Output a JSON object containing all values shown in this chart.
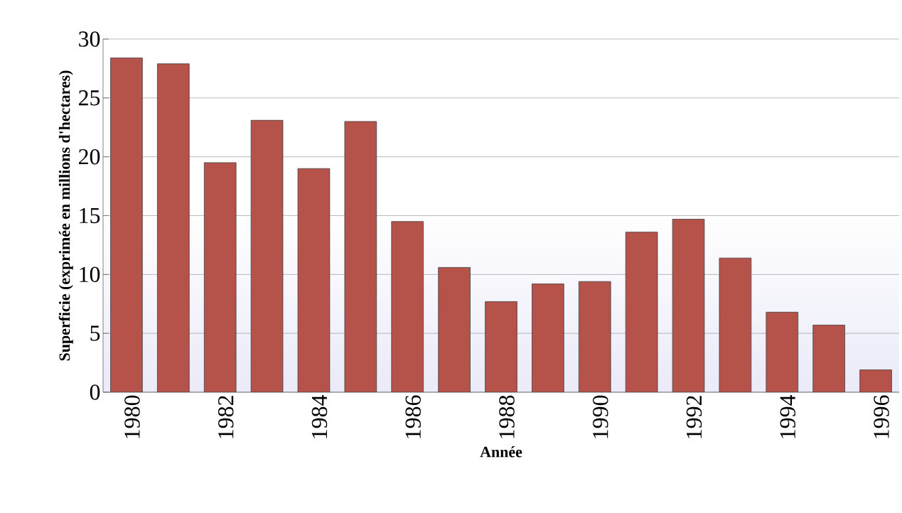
{
  "chart_data": {
    "type": "bar",
    "xlabel": "Année",
    "ylabel": "Superficie (exprimée en millions d'hectares)",
    "categories": [
      "1980",
      null,
      "1982",
      null,
      "1984",
      null,
      "1986",
      null,
      "1988",
      null,
      "1990",
      null,
      "1992",
      null,
      "1994",
      null,
      "1996"
    ],
    "values": [
      28.4,
      27.9,
      19.5,
      23.1,
      19.0,
      23.0,
      14.5,
      10.6,
      7.7,
      9.2,
      9.4,
      13.6,
      14.7,
      11.4,
      6.8,
      5.7,
      1.9
    ],
    "color": "#b5524a",
    "ylim": [
      0,
      30
    ],
    "yticks": [
      0,
      5,
      10,
      15,
      20,
      25,
      30
    ],
    "grid": "y"
  }
}
